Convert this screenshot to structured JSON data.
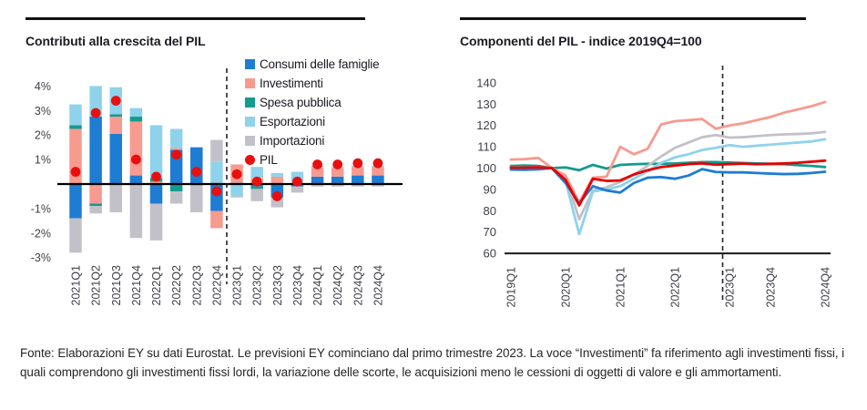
{
  "page": {
    "background": "#ffffff"
  },
  "palette": {
    "consumi_blue": "#1E7CD2",
    "investimenti_salmon": "#F79A8F",
    "spesa_teal": "#159A8E",
    "esportazioni_lightblue": "#8FD2EC",
    "importazioni_gray": "#C2C1C9",
    "pil_red": "#E90F0F",
    "axis_text": "#3F3F46",
    "rule_black": "#111111"
  },
  "footer": {
    "text": "Fonte: Elaborazioni EY su dati Eurostat. Le previsioni EY cominciano dal primo trimestre 2023. La voce “Investimenti” fa riferimento agli investimenti fissi, i quali comprendono gli investimenti fissi lordi, la variazione delle scorte, le acquisizioni meno le cessioni di oggetti di valore e gli ammortamenti."
  },
  "chart_data": [
    {
      "type": "bar",
      "stacked": true,
      "title": "Contributi alla crescita del PIL",
      "unit": "percentage points, q/q",
      "grid": false,
      "legend_position": "top-right",
      "yticks": [
        4,
        3,
        2,
        1,
        -1,
        -2,
        -3
      ],
      "ylim": [
        -3.3,
        4.3
      ],
      "forecast_divider_after": "2022Q4",
      "categories": [
        "2021Q1",
        "2021Q2",
        "2021Q3",
        "2021Q4",
        "2022Q1",
        "2022Q2",
        "2022Q3",
        "2022Q4",
        "2023Q1",
        "2023Q2",
        "2023Q3",
        "2023Q4",
        "2024Q1",
        "2024Q2",
        "2024Q3",
        "2024Q4"
      ],
      "series": [
        {
          "name": "Consumi delle famiglie",
          "color": "#1E7CD2",
          "values": [
            -1.4,
            2.75,
            2.05,
            0.35,
            -0.8,
            1.4,
            1.5,
            -1.1,
            0.05,
            -0.1,
            -0.55,
            -0.1,
            0.3,
            0.3,
            0.35,
            0.35
          ]
        },
        {
          "name": "Investimenti",
          "color": "#F79A8F",
          "values": [
            2.25,
            -0.8,
            0.7,
            2.2,
            0.1,
            0.05,
            0.0,
            -0.7,
            0.75,
            0.25,
            0.3,
            0.05,
            0.4,
            0.35,
            0.35,
            0.35
          ]
        },
        {
          "name": "Spesa pubblica",
          "color": "#159A8E",
          "values": [
            0.15,
            -0.1,
            0.1,
            0.2,
            0.15,
            -0.3,
            -0.05,
            0.05,
            0.0,
            -0.1,
            0.0,
            0.0,
            0.0,
            0.0,
            0.0,
            0.0
          ]
        },
        {
          "name": "Esportazioni",
          "color": "#8FD2EC",
          "values": [
            0.85,
            1.25,
            1.1,
            0.35,
            2.15,
            0.8,
            0.0,
            0.85,
            -0.5,
            0.45,
            0.15,
            0.45,
            0.05,
            0.05,
            0.05,
            0.05
          ]
        },
        {
          "name": "Importazioni",
          "color": "#C2C1C9",
          "values": [
            -1.4,
            -0.3,
            -1.15,
            -2.2,
            -1.5,
            -0.5,
            -1.1,
            0.9,
            -0.05,
            -0.5,
            -0.4,
            -0.25,
            -0.1,
            -0.1,
            -0.1,
            -0.1
          ]
        }
      ],
      "dot_series": {
        "name": "PIL",
        "color": "#E90F0F",
        "values": [
          0.5,
          2.9,
          3.4,
          1.0,
          0.3,
          1.2,
          0.5,
          -0.3,
          0.4,
          0.1,
          -0.5,
          0.1,
          0.8,
          0.8,
          0.85,
          0.85
        ]
      }
    },
    {
      "type": "line",
      "title": "Componenti del PIL - indice 2019Q4=100",
      "grid": false,
      "yticks": [
        140,
        130,
        120,
        110,
        100,
        90,
        80,
        70,
        60
      ],
      "ylim": [
        60,
        145
      ],
      "forecast_divider_after": "2022Q4",
      "x": [
        "2019Q1",
        "2019Q2",
        "2019Q3",
        "2019Q4",
        "2020Q1",
        "2020Q2",
        "2020Q3",
        "2020Q4",
        "2021Q1",
        "2021Q2",
        "2021Q3",
        "2021Q4",
        "2022Q1",
        "2022Q2",
        "2022Q3",
        "2022Q4",
        "2023Q1",
        "2023Q2",
        "2023Q3",
        "2023Q4",
        "2024Q1",
        "2024Q2",
        "2024Q3",
        "2024Q4"
      ],
      "xticks": [
        "2019Q1",
        "2020Q1",
        "2021Q1",
        "2022Q1",
        "2023Q1",
        "2023Q4",
        "2024Q4"
      ],
      "series": [
        {
          "name": "Spesa pubblica",
          "color": "#159A8E",
          "values": [
            101,
            101.2,
            101,
            100,
            100.3,
            99,
            101.5,
            99.8,
            101.5,
            101.8,
            102,
            102,
            102.2,
            102.5,
            102.8,
            102.8,
            102.6,
            102.4,
            102.2,
            102,
            101.8,
            101.4,
            101,
            100.5
          ]
        },
        {
          "name": "Importazioni",
          "color": "#C2C1C9",
          "values": [
            100.3,
            100.2,
            100.5,
            100,
            96.5,
            76,
            89.5,
            91,
            93.5,
            97,
            101,
            105.5,
            109.5,
            112,
            114.5,
            115.5,
            114.3,
            114.5,
            115,
            115.5,
            115.8,
            116,
            116.3,
            117
          ]
        },
        {
          "name": "Esportazioni",
          "color": "#8FD2EC",
          "values": [
            99.8,
            99.5,
            100,
            100,
            94,
            69,
            89,
            90,
            91.5,
            95,
            98.5,
            102.5,
            105,
            106.5,
            108.5,
            109.5,
            110.8,
            110,
            110.5,
            111,
            111.5,
            112,
            112.5,
            113.5
          ]
        },
        {
          "name": "Investimenti",
          "color": "#F79A8F",
          "values": [
            104,
            104.2,
            104.8,
            100,
            96.5,
            84,
            95.5,
            96,
            110,
            106.5,
            109,
            120.5,
            122,
            122.5,
            123,
            118.5,
            120,
            121,
            122.5,
            124,
            126,
            127.5,
            129,
            131
          ]
        },
        {
          "name": "Consumi delle famiglie",
          "color": "#1E7CD2",
          "values": [
            99.3,
            99.2,
            99.4,
            100,
            93,
            83.5,
            91.5,
            89.5,
            88.5,
            93,
            95.5,
            95.8,
            95,
            96.5,
            99.5,
            98.2,
            98,
            98,
            97.7,
            97.4,
            97.2,
            97.3,
            97.7,
            98.3
          ]
        },
        {
          "name": "PIL",
          "color": "#E60000",
          "values": [
            100.2,
            100.2,
            100.4,
            100,
            94.5,
            82.5,
            95,
            94,
            94.2,
            97,
            99,
            100.5,
            101.2,
            101.9,
            102.2,
            101.6,
            101.9,
            102.1,
            101.8,
            102,
            102.2,
            102.5,
            103,
            103.5
          ]
        }
      ]
    }
  ]
}
